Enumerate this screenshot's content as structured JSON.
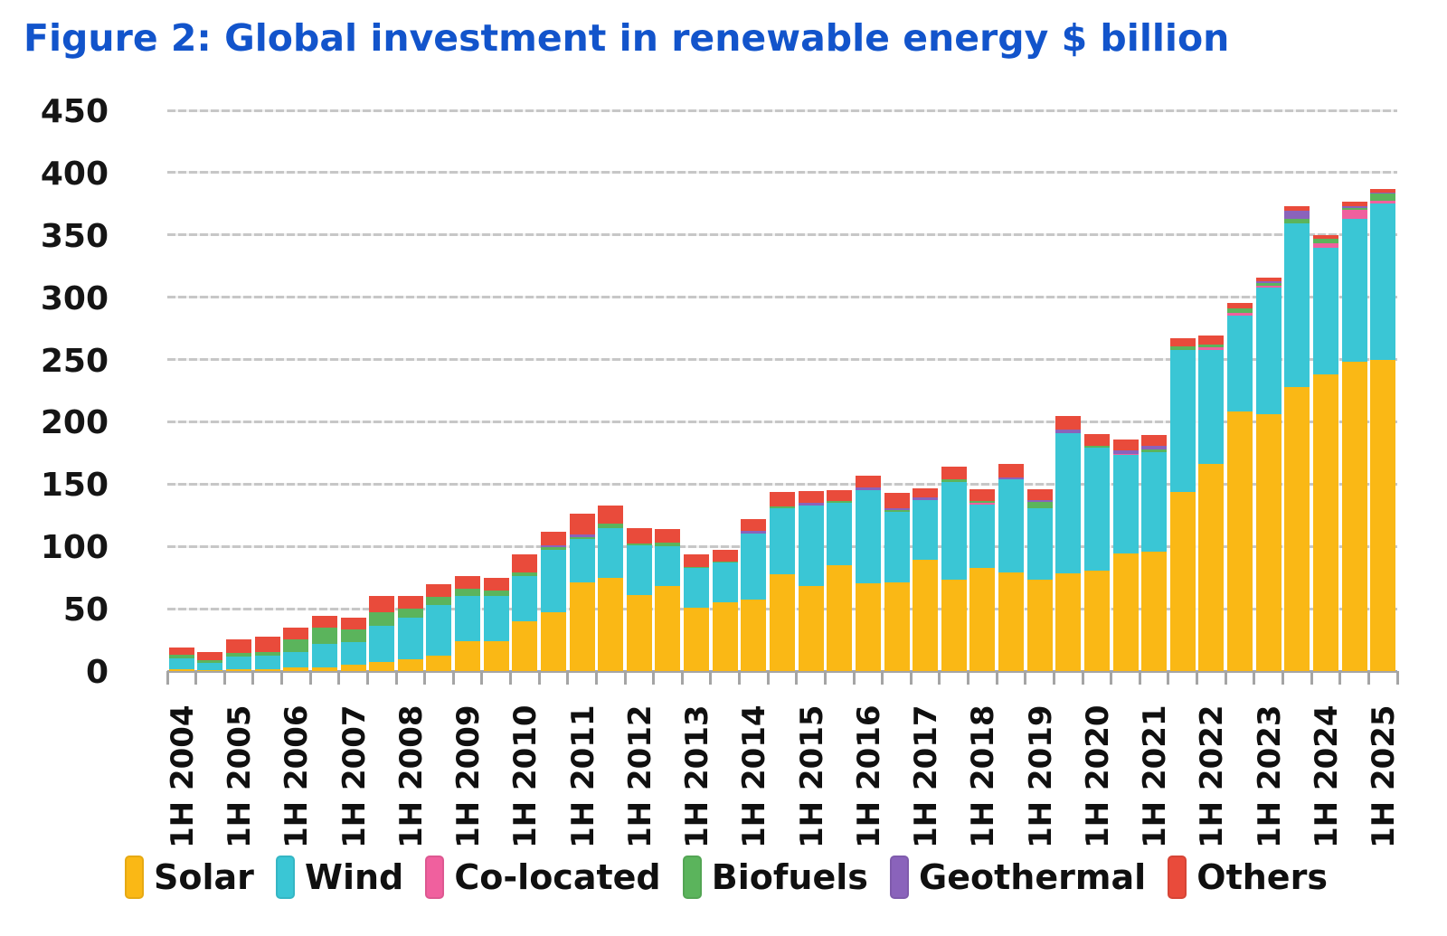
{
  "title": "Figure 2: Global investment in renewable energy $ billion",
  "title_color": "#1254CB",
  "axis": {
    "y_ticks": [
      0,
      50,
      100,
      150,
      200,
      250,
      300,
      350,
      400,
      450
    ],
    "ylim": [
      0,
      450
    ],
    "grid_color": "#c7c7c7",
    "baseline_color": "#a5a5a5"
  },
  "legend": {
    "position": "bottom",
    "items": [
      "Solar",
      "Wind",
      "Co-located",
      "Biofuels",
      "Geothermal",
      "Others"
    ]
  },
  "chart_data": {
    "type": "bar",
    "stacked": true,
    "title": "Figure 2: Global investment in renewable energy $ billion",
    "unit": "$ billion",
    "ylim": [
      0,
      450
    ],
    "grid": true,
    "legend_position": "bottom",
    "x_label_shown_every": "1H of each year",
    "categories": [
      "1H 2004",
      "2H 2004",
      "1H 2005",
      "2H 2005",
      "1H 2006",
      "2H 2006",
      "1H 2007",
      "2H 2007",
      "1H 2008",
      "2H 2008",
      "1H 2009",
      "2H 2009",
      "1H 2010",
      "2H 2010",
      "1H 2011",
      "2H 2011",
      "1H 2012",
      "2H 2012",
      "1H 2013",
      "2H 2013",
      "1H 2014",
      "2H 2014",
      "1H 2015",
      "2H 2015",
      "1H 2016",
      "2H 2016",
      "1H 2017",
      "2H 2017",
      "1H 2018",
      "2H 2018",
      "1H 2019",
      "2H 2019",
      "1H 2020",
      "2H 2020",
      "1H 2021",
      "2H 2021",
      "1H 2022",
      "2H 2022",
      "1H 2023",
      "2H 2023",
      "1H 2024",
      "2H 2024",
      "1H 2025"
    ],
    "series": [
      {
        "name": "Solar",
        "color": "#FAB815",
        "values": [
          1.5,
          1,
          1.5,
          1.5,
          3,
          3,
          5,
          7.5,
          9.5,
          12,
          24,
          24,
          40,
          47,
          71,
          74.5,
          61,
          68,
          51,
          55,
          57,
          77.5,
          68,
          85,
          70.5,
          71,
          89.5,
          73.5,
          82.5,
          79,
          73.5,
          78.5,
          80.5,
          94.5,
          95.5,
          144,
          166,
          208,
          206,
          228,
          238,
          248,
          250
        ]
      },
      {
        "name": "Wind",
        "color": "#3AC6D5",
        "values": [
          9,
          5.5,
          10,
          10.5,
          12,
          18.5,
          18.5,
          29,
          33.5,
          41,
          36,
          36,
          36,
          50.5,
          35,
          40,
          40,
          32,
          31.5,
          32,
          53.5,
          53,
          65,
          50,
          75,
          56.5,
          48,
          78.5,
          51,
          75,
          57.5,
          112.5,
          99,
          79,
          80,
          113.5,
          92,
          77,
          101.5,
          131.5,
          101.5,
          115,
          125
        ]
      },
      {
        "name": "Co-located",
        "color": "#F0609E",
        "values": [
          0,
          0,
          0,
          0,
          0,
          0,
          0,
          0,
          0,
          0,
          0,
          0,
          0,
          0,
          0,
          0,
          0,
          0,
          0,
          0,
          0,
          0,
          0,
          0,
          0,
          0,
          0,
          0,
          1.5,
          0,
          0,
          0,
          0,
          1,
          0,
          0,
          1.5,
          2.5,
          1.5,
          0,
          4,
          7,
          2.5
        ]
      },
      {
        "name": "Biofuels",
        "color": "#5BB45C",
        "values": [
          2.5,
          2.5,
          3,
          3,
          10.5,
          13,
          10,
          11,
          7,
          6.5,
          6,
          4.5,
          3,
          2,
          1.5,
          4,
          1.5,
          3,
          1,
          1,
          0,
          1.5,
          0,
          1.5,
          0,
          2,
          0,
          2,
          1.5,
          0,
          4.5,
          0,
          1.5,
          0,
          2.5,
          3,
          2.5,
          3.5,
          2.5,
          3.5,
          3.5,
          1.5,
          5.5
        ]
      },
      {
        "name": "Geothermal",
        "color": "#8A63BB",
        "values": [
          0,
          0,
          0,
          0,
          0,
          0,
          0,
          0,
          0,
          0,
          0,
          0,
          0,
          1.5,
          2,
          0,
          0,
          0,
          0,
          0,
          2,
          0,
          2,
          0,
          1.5,
          1.5,
          2,
          0,
          0,
          1.5,
          1.5,
          3,
          0,
          2.5,
          2.5,
          0,
          0,
          0,
          1.5,
          6.5,
          0,
          1.5,
          1
        ]
      },
      {
        "name": "Others",
        "color": "#E94B3B",
        "values": [
          6,
          6,
          11,
          12.5,
          9.5,
          10,
          9,
          12.5,
          10.5,
          10,
          10,
          10,
          15,
          11,
          16.5,
          14.5,
          12.5,
          11,
          10,
          9,
          9.5,
          12,
          9.5,
          9,
          9.5,
          12,
          7,
          10,
          9.5,
          10.5,
          9,
          11,
          9.5,
          8.5,
          9,
          6.5,
          7.5,
          4.5,
          3,
          3.5,
          3,
          3.5,
          3
        ]
      }
    ]
  }
}
